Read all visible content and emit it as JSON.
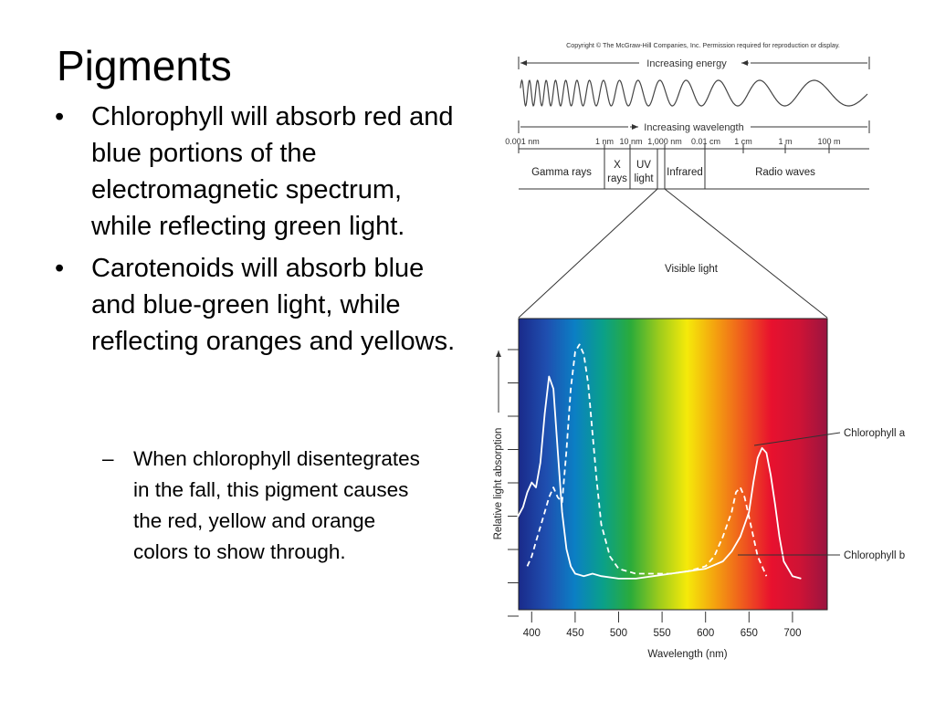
{
  "slide": {
    "title": "Pigments",
    "bullets": [
      {
        "marker": "•",
        "text": "Chlorophyll will absorb red and blue portions of the electromagnetic spectrum, while reflecting green light."
      },
      {
        "marker": "•",
        "text": "Carotenoids will absorb blue and blue-green light, while reflecting oranges and yellows."
      }
    ],
    "sub_bullets": [
      {
        "marker": "–",
        "text": "When chlorophyll disentegrates in the fall, this pigment causes the red, yellow and orange colors to show through."
      }
    ]
  },
  "figure": {
    "copyright": "Copyright © The McGraw-Hill Companies, Inc. Permission required for reproduction or display.",
    "energy_label": "Increasing energy",
    "wavelength_label": "Increasing wavelength",
    "scale_ticks": [
      {
        "label": "0.001 nm",
        "x": 0.001
      },
      {
        "label": "1 nm",
        "x": 1
      },
      {
        "label": "10 nm",
        "x": 10
      },
      {
        "label": "1,000 nm",
        "x": 1000
      },
      {
        "label": "0.01 cm",
        "x": 0.01
      },
      {
        "label": "1 cm",
        "x": 1
      },
      {
        "label": "1 m",
        "x": 1
      },
      {
        "label": "100 m",
        "x": 100
      }
    ],
    "regions": {
      "gamma": "Gamma rays",
      "xrays_1": "X",
      "xrays_2": "rays",
      "uv_1": "UV",
      "uv_2": "light",
      "infrared": "Infrared",
      "radio": "Radio waves"
    },
    "visible_label": "Visible light",
    "colors": {
      "spectrum_stops": [
        "#1a2a8a",
        "#1f4fb0",
        "#0b7fc4",
        "#0aa08a",
        "#2bab3a",
        "#9ccb1c",
        "#f5ea0a",
        "#f4a20f",
        "#ef5a1e",
        "#e8112e",
        "#cf1335",
        "#9a1440"
      ],
      "curve": "#ffffff",
      "line": "#333333"
    }
  },
  "chart_data": {
    "type": "line",
    "xlabel": "Wavelength (nm)",
    "ylabel": "Relative light absorption",
    "xlim": [
      385,
      740
    ],
    "ylim": [
      0,
      1
    ],
    "x_ticks": [
      400,
      450,
      500,
      550,
      600,
      650,
      700
    ],
    "series": [
      {
        "name": "Chlorophyll a",
        "style": "solid",
        "x": [
          384,
          390,
          395,
          400,
          405,
          410,
          415,
          420,
          425,
          430,
          435,
          440,
          445,
          450,
          460,
          470,
          480,
          500,
          520,
          540,
          560,
          580,
          600,
          620,
          630,
          640,
          650,
          655,
          660,
          665,
          670,
          675,
          680,
          685,
          690,
          700,
          710
        ],
        "y": [
          0.28,
          0.32,
          0.38,
          0.42,
          0.4,
          0.5,
          0.7,
          0.85,
          0.8,
          0.55,
          0.3,
          0.15,
          0.08,
          0.05,
          0.04,
          0.05,
          0.04,
          0.03,
          0.03,
          0.04,
          0.05,
          0.06,
          0.07,
          0.1,
          0.14,
          0.2,
          0.3,
          0.42,
          0.52,
          0.56,
          0.54,
          0.45,
          0.33,
          0.2,
          0.1,
          0.04,
          0.03
        ]
      },
      {
        "name": "Chlorophyll b",
        "style": "dashed",
        "x": [
          395,
          400,
          405,
          410,
          415,
          420,
          425,
          430,
          435,
          440,
          445,
          450,
          455,
          460,
          465,
          470,
          475,
          480,
          490,
          500,
          520,
          540,
          560,
          580,
          600,
          610,
          620,
          630,
          635,
          640,
          645,
          650,
          660,
          670
        ],
        "y": [
          0.08,
          0.12,
          0.18,
          0.24,
          0.3,
          0.36,
          0.4,
          0.36,
          0.34,
          0.55,
          0.8,
          0.95,
          0.98,
          0.94,
          0.82,
          0.62,
          0.42,
          0.25,
          0.12,
          0.07,
          0.05,
          0.05,
          0.05,
          0.06,
          0.08,
          0.12,
          0.2,
          0.3,
          0.38,
          0.4,
          0.36,
          0.28,
          0.12,
          0.04
        ]
      }
    ]
  }
}
